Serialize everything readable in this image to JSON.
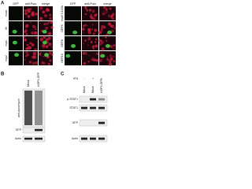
{
  "panel_a": {
    "label": "A",
    "left": {
      "columns": [
        "GFP",
        "anti-Puro",
        "merge"
      ],
      "rows": [
        "mock",
        "M",
        "nsp1",
        "nsp2"
      ]
    },
    "right": {
      "columns": [
        "GFP",
        "anti-Puro",
        "merge"
      ],
      "rows": [
        "nsp5 C145A",
        "ORF6",
        "ORF8",
        "ORF10"
      ]
    }
  },
  "panel_b": {
    "label": "B",
    "lanes": [
      "Mock",
      "NSP1-GFP"
    ],
    "blots": [
      "anti-puromycin",
      "GFP",
      "Actin"
    ]
  },
  "panel_c": {
    "label": "C",
    "treatment": "IFN",
    "treatment_levels": [
      "-",
      "+",
      "+"
    ],
    "lanes": [
      "Mock",
      "Mock",
      "NSP1-GFP"
    ],
    "blots": [
      "p-STAT1",
      "STAT1",
      "GFP",
      "Actin"
    ]
  }
}
